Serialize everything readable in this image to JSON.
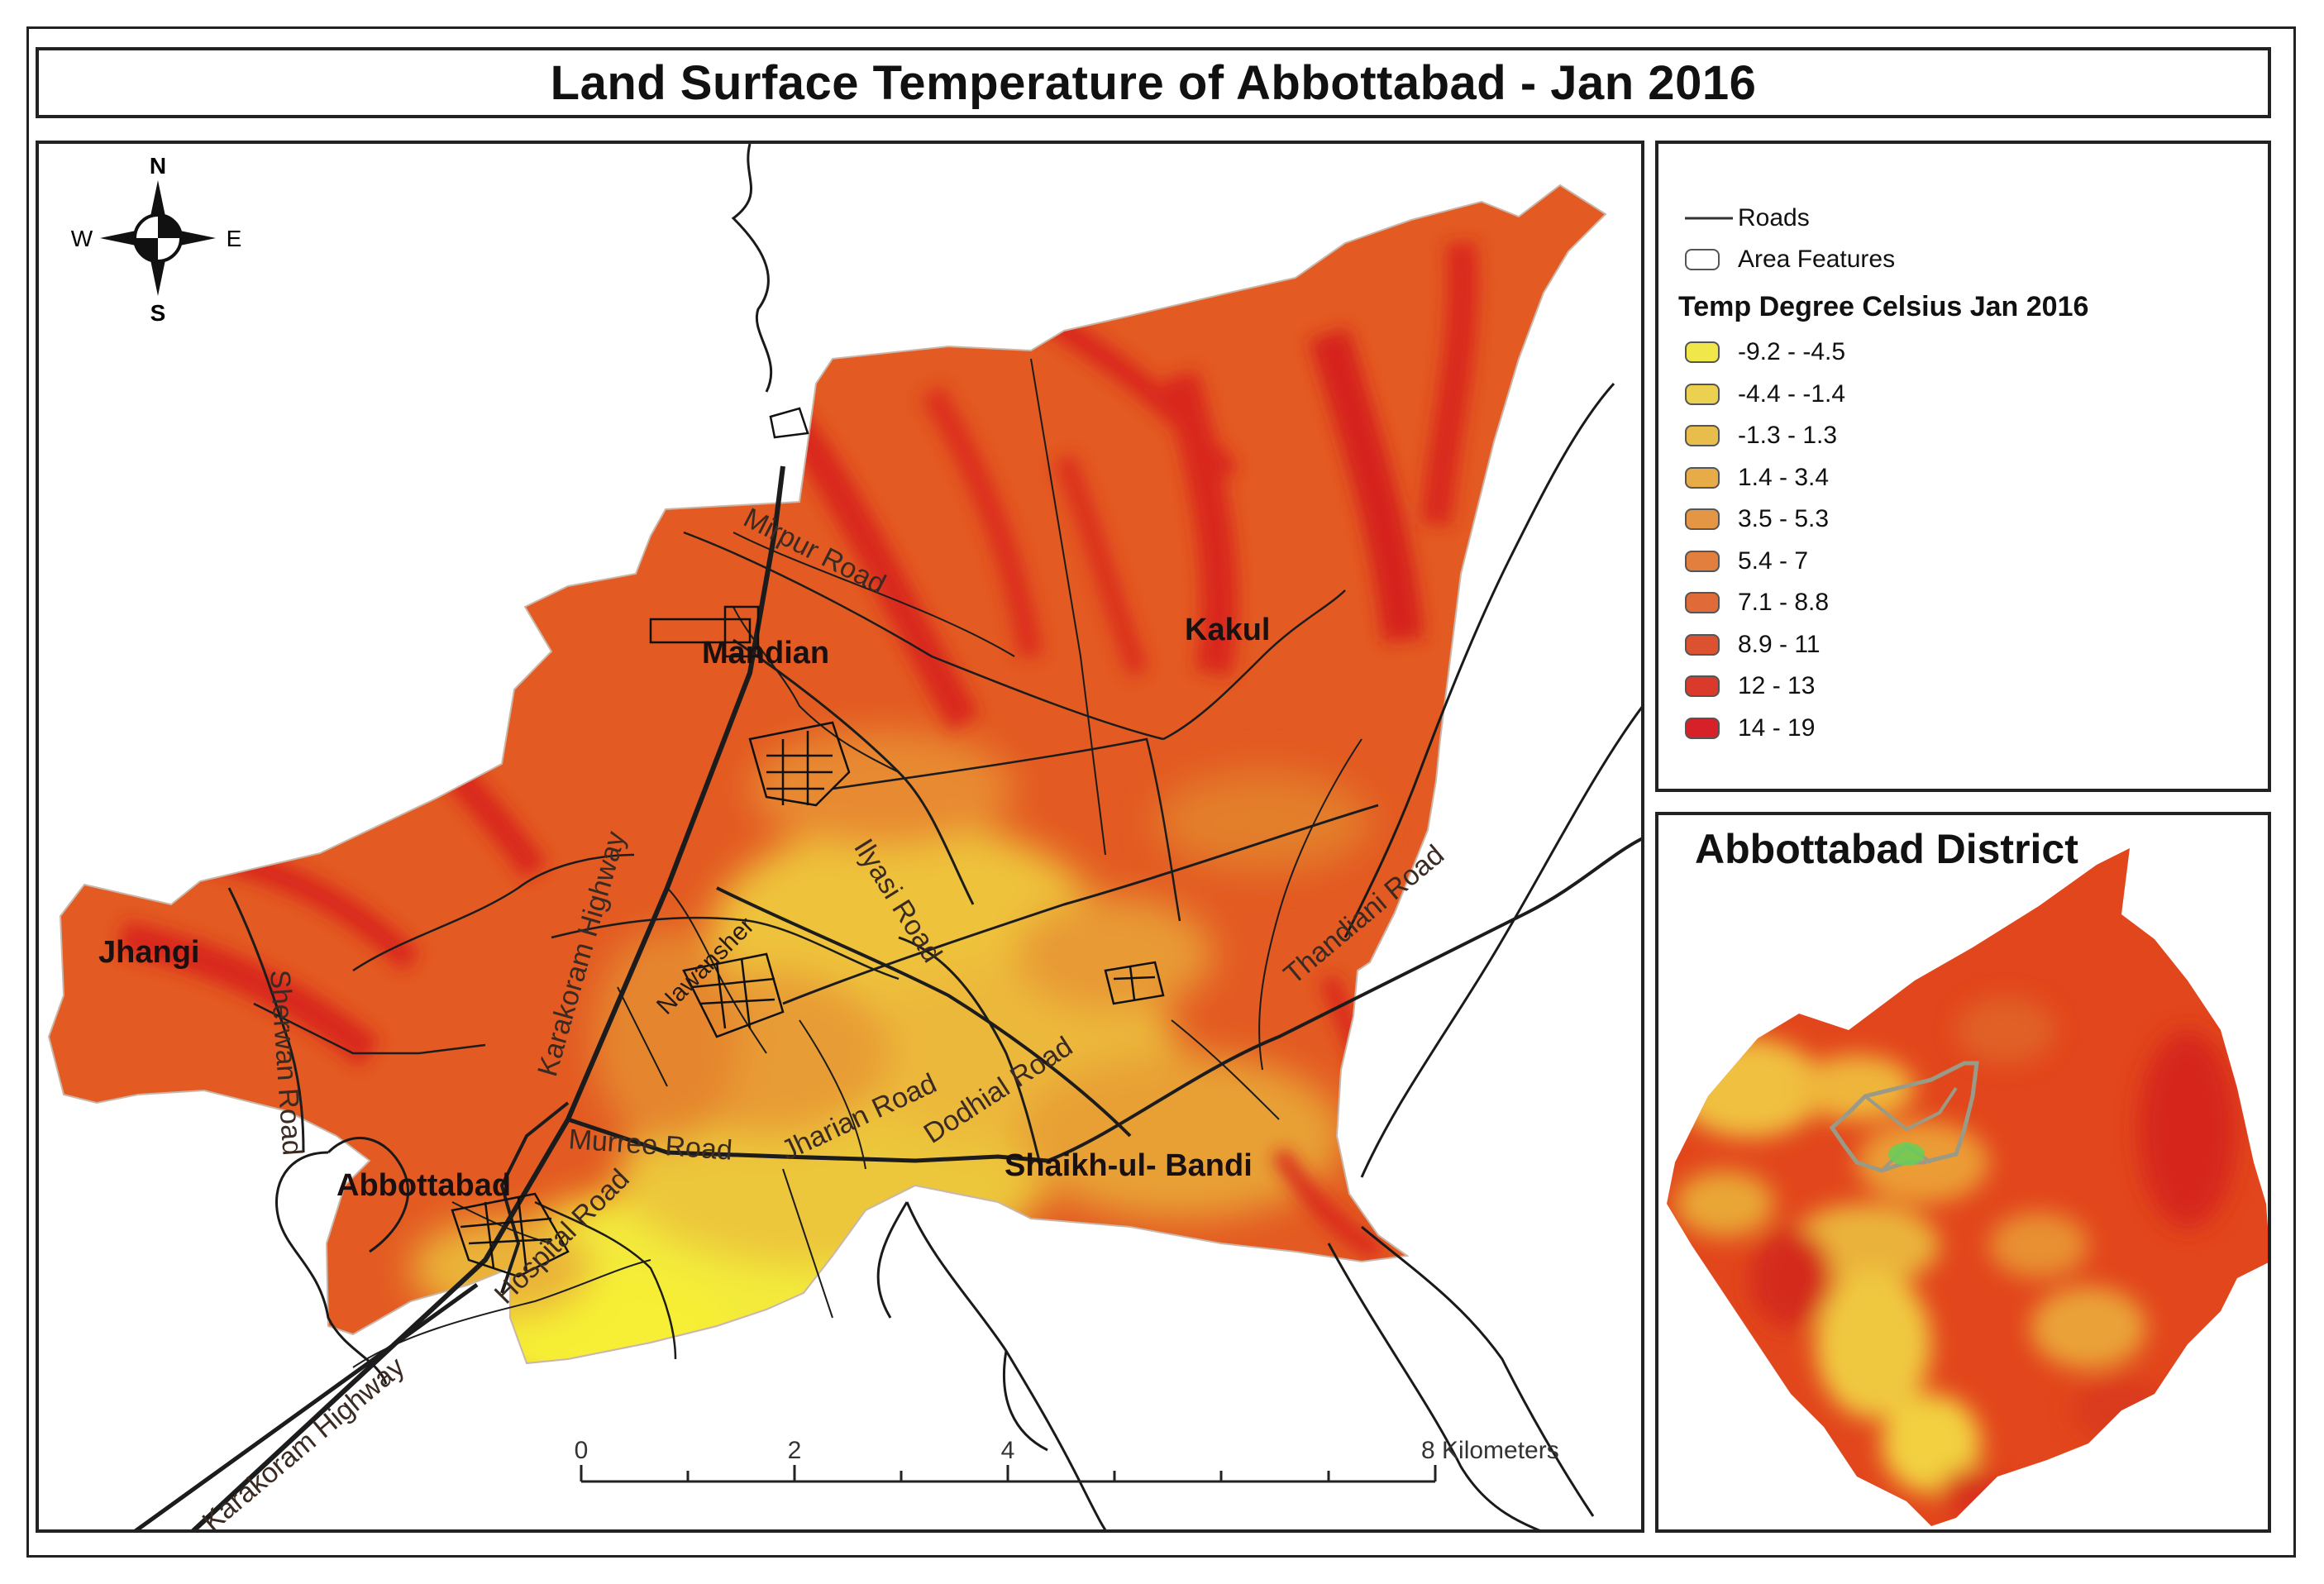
{
  "title": "Land Surface Temperature of Abbottabad - Jan 2016",
  "compass": {
    "n": "N",
    "s": "S",
    "e": "E",
    "w": "W"
  },
  "places": {
    "mandian": "Mandian",
    "kakul": "Kakul",
    "jhangi": "Jhangi",
    "abbottabad": "Abbottabad",
    "shaikh": "Shaikh-ul- Bandi",
    "nawanshehr": "Nawansher"
  },
  "roads": {
    "mirpur": "Mirpur Road",
    "thandiani": "Thandiani Road",
    "ilyasi": "Ilyasi Road",
    "jharian": "Jharian Road",
    "dodhial": "Dodhial Road",
    "murree": "Murree Road",
    "hospital": "Hospital Road",
    "sherwan": "Sherwan Road",
    "karakoram_upper": "Karakoram Highway",
    "karakoram_lower": "Karakoram Highway"
  },
  "scale_bar": {
    "labels": [
      "0",
      "2",
      "4",
      "8 Kilometers"
    ],
    "values_km": [
      0,
      2,
      4,
      8
    ]
  },
  "legend": {
    "roads_label": "Roads",
    "area_label": "Area Features",
    "title": "Temp Degree Celsius Jan 2016",
    "classes": [
      {
        "label": "-9.2 - -4.5",
        "color": "#f0e84a"
      },
      {
        "label": "-4.4 - -1.4",
        "color": "#ecd050"
      },
      {
        "label": "-1.3 - 1.3",
        "color": "#e9bd4c"
      },
      {
        "label": "1.4 - 3.4",
        "color": "#e7ab48"
      },
      {
        "label": "3.5 - 5.3",
        "color": "#e59644"
      },
      {
        "label": "5.4 - 7",
        "color": "#e37f3e"
      },
      {
        "label": "7.1 - 8.8",
        "color": "#e06a38"
      },
      {
        "label": "8.9 - 11",
        "color": "#dc5230"
      },
      {
        "label": "12 - 13",
        "color": "#d93a2c"
      },
      {
        "label": "14 - 19",
        "color": "#d62128"
      }
    ]
  },
  "inset": {
    "title": "Abbottabad District"
  }
}
